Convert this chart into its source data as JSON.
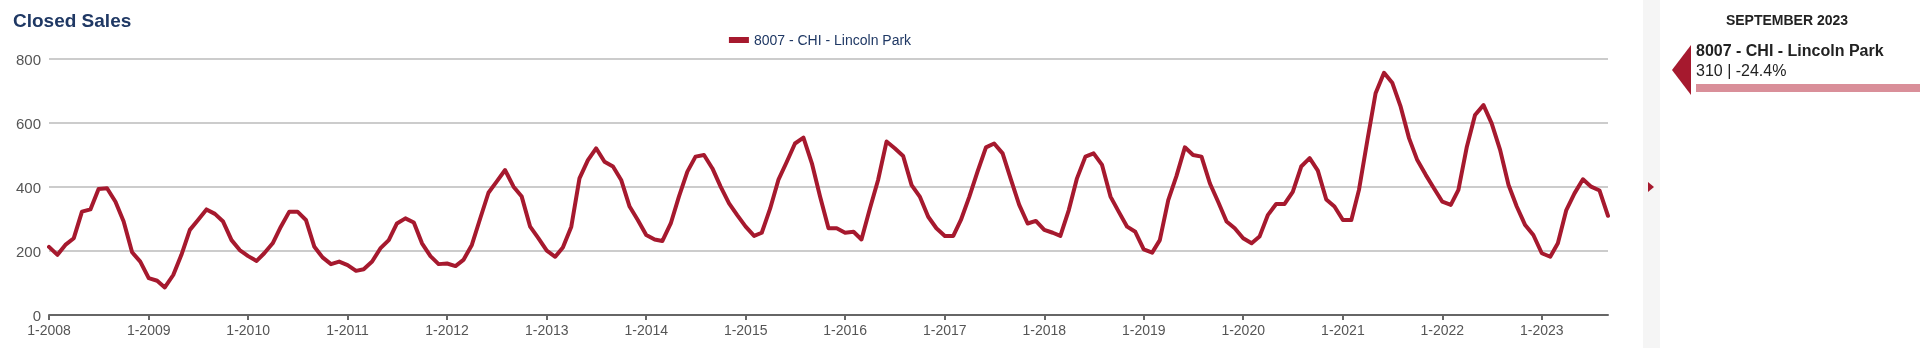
{
  "chart_data": {
    "type": "line",
    "title": "Closed Sales",
    "x": [
      "2008-01",
      "2008-02",
      "2008-03",
      "2008-04",
      "2008-05",
      "2008-06",
      "2008-07",
      "2008-08",
      "2008-09",
      "2008-10",
      "2008-11",
      "2008-12",
      "2009-01",
      "2009-02",
      "2009-03",
      "2009-04",
      "2009-05",
      "2009-06",
      "2009-07",
      "2009-08",
      "2009-09",
      "2009-10",
      "2009-11",
      "2009-12",
      "2010-01",
      "2010-02",
      "2010-03",
      "2010-04",
      "2010-05",
      "2010-06",
      "2010-07",
      "2010-08",
      "2010-09",
      "2010-10",
      "2010-11",
      "2010-12",
      "2011-01",
      "2011-02",
      "2011-03",
      "2011-04",
      "2011-05",
      "2011-06",
      "2011-07",
      "2011-08",
      "2011-09",
      "2011-10",
      "2011-11",
      "2011-12",
      "2012-01",
      "2012-02",
      "2012-03",
      "2012-04",
      "2012-05",
      "2012-06",
      "2012-07",
      "2012-08",
      "2012-09",
      "2012-10",
      "2012-11",
      "2012-12",
      "2013-01",
      "2013-02",
      "2013-03",
      "2013-04",
      "2013-05",
      "2013-06",
      "2013-07",
      "2013-08",
      "2013-09",
      "2013-10",
      "2013-11",
      "2013-12",
      "2014-01",
      "2014-02",
      "2014-03",
      "2014-04",
      "2014-05",
      "2014-06",
      "2014-07",
      "2014-08",
      "2014-09",
      "2014-10",
      "2014-11",
      "2014-12",
      "2015-01",
      "2015-02",
      "2015-03",
      "2015-04",
      "2015-05",
      "2015-06",
      "2015-07",
      "2015-08",
      "2015-09",
      "2015-10",
      "2015-11",
      "2015-12",
      "2016-01",
      "2016-02",
      "2016-03",
      "2016-04",
      "2016-05",
      "2016-06",
      "2016-07",
      "2016-08",
      "2016-09",
      "2016-10",
      "2016-11",
      "2016-12",
      "2017-01",
      "2017-02",
      "2017-03",
      "2017-04",
      "2017-05",
      "2017-06",
      "2017-07",
      "2017-08",
      "2017-09",
      "2017-10",
      "2017-11",
      "2017-12",
      "2018-01",
      "2018-02",
      "2018-03",
      "2018-04",
      "2018-05",
      "2018-06",
      "2018-07",
      "2018-08",
      "2018-09",
      "2018-10",
      "2018-11",
      "2018-12",
      "2019-01",
      "2019-02",
      "2019-03",
      "2019-04",
      "2019-05",
      "2019-06",
      "2019-07",
      "2019-08",
      "2019-09",
      "2019-10",
      "2019-11",
      "2019-12",
      "2020-01",
      "2020-02",
      "2020-03",
      "2020-04",
      "2020-05",
      "2020-06",
      "2020-07",
      "2020-08",
      "2020-09",
      "2020-10",
      "2020-11",
      "2020-12",
      "2021-01",
      "2021-02",
      "2021-03",
      "2021-04",
      "2021-05",
      "2021-06",
      "2021-07",
      "2021-08",
      "2021-09",
      "2021-10",
      "2021-11",
      "2021-12",
      "2022-01",
      "2022-02",
      "2022-03",
      "2022-04",
      "2022-05",
      "2022-06",
      "2022-07",
      "2022-08",
      "2022-09",
      "2022-10",
      "2022-11",
      "2022-12",
      "2023-01",
      "2023-02",
      "2023-03",
      "2023-04",
      "2023-05",
      "2023-06",
      "2023-07",
      "2023-08",
      "2023-09"
    ],
    "xlim": [
      "2008-01",
      "2023-09"
    ],
    "xticks": [
      {
        "value": "2008-01",
        "label": "1-2008"
      },
      {
        "value": "2009-01",
        "label": "1-2009"
      },
      {
        "value": "2010-01",
        "label": "1-2010"
      },
      {
        "value": "2011-01",
        "label": "1-2011"
      },
      {
        "value": "2012-01",
        "label": "1-2012"
      },
      {
        "value": "2013-01",
        "label": "1-2013"
      },
      {
        "value": "2014-01",
        "label": "1-2014"
      },
      {
        "value": "2015-01",
        "label": "1-2015"
      },
      {
        "value": "2016-01",
        "label": "1-2016"
      },
      {
        "value": "2017-01",
        "label": "1-2017"
      },
      {
        "value": "2018-01",
        "label": "1-2018"
      },
      {
        "value": "2019-01",
        "label": "1-2019"
      },
      {
        "value": "2020-01",
        "label": "1-2020"
      },
      {
        "value": "2021-01",
        "label": "1-2021"
      },
      {
        "value": "2022-01",
        "label": "1-2022"
      },
      {
        "value": "2023-01",
        "label": "1-2023"
      }
    ],
    "ylim": [
      0,
      800
    ],
    "yticks": [
      0,
      200,
      400,
      600,
      800
    ],
    "grid": "y",
    "legend": "top",
    "marker": "none",
    "line_style": "solid",
    "series": [
      {
        "name": "8007 - CHI - Lincoln Park",
        "color": "#a6192e",
        "values": [
          213,
          188,
          219,
          240,
          323,
          330,
          394,
          396,
          354,
          292,
          196,
          167,
          115,
          107,
          86,
          125,
          188,
          266,
          297,
          330,
          316,
          292,
          234,
          203,
          184,
          169,
          193,
          224,
          276,
          323,
          323,
          297,
          213,
          180,
          159,
          167,
          156,
          138,
          143,
          167,
          208,
          234,
          286,
          302,
          289,
          224,
          184,
          159,
          161,
          153,
          172,
          219,
          300,
          382,
          417,
          453,
          401,
          370,
          276,
          240,
          201,
          182,
          211,
          276,
          427,
          484,
          521,
          479,
          464,
          422,
          339,
          297,
          250,
          236,
          231,
          286,
          370,
          448,
          495,
          500,
          458,
          401,
          349,
          312,
          276,
          247,
          257,
          333,
          422,
          479,
          536,
          554,
          474,
          370,
          271,
          271,
          257,
          260,
          236,
          333,
          422,
          542,
          521,
          497,
          406,
          370,
          307,
          271,
          247,
          247,
          297,
          370,
          448,
          524,
          536,
          505,
          422,
          344,
          286,
          294,
          266,
          257,
          247,
          328,
          427,
          495,
          505,
          469,
          370,
          323,
          276,
          260,
          205,
          195,
          234,
          359,
          434,
          524,
          500,
          495,
          411,
          354,
          292,
          271,
          240,
          224,
          245,
          313,
          347,
          347,
          385,
          464,
          490,
          451,
          361,
          339,
          297,
          297,
          391,
          547,
          693,
          757,
          726,
          651,
          552,
          484,
          438,
          396,
          354,
          344,
          391,
          526,
          625,
          656,
          599,
          516,
          406,
          339,
          281,
          250,
          193,
          182,
          224,
          328,
          380,
          424,
          401,
          389,
          310
        ]
      }
    ],
    "annotations": [
      "SEPTEMBER 2023",
      "8007 - CHI - Lincoln Park",
      "310 | -24.4%"
    ]
  }
}
